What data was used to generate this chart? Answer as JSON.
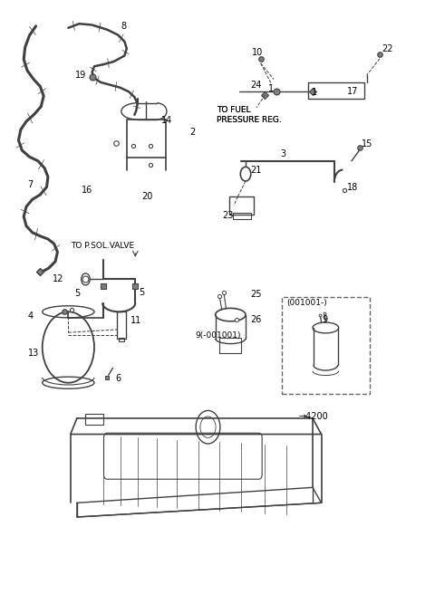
{
  "bg_color": "#ffffff",
  "line_color": "#404040",
  "text_color": "#000000",
  "fig_width": 4.8,
  "fig_height": 6.56,
  "dpi": 100,
  "labels": {
    "to_fuel": "TO FUEL\nPRESSURE REG.",
    "to_psol": "TO P.SOL.VALVE",
    "part_range": "(001001-)"
  }
}
